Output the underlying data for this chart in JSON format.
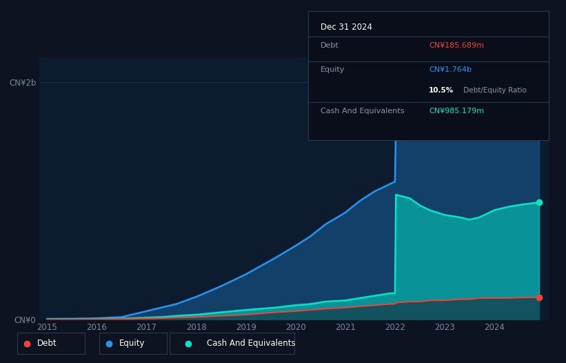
{
  "background_color": "#0d1320",
  "plot_bg_color": "#0d1b2e",
  "ylabel_top": "CN¥2b",
  "ylabel_bottom": "CN¥0",
  "x_ticks": [
    2015,
    2016,
    2017,
    2018,
    2019,
    2020,
    2021,
    2022,
    2023,
    2024
  ],
  "years": [
    2015.0,
    2015.3,
    2015.6,
    2016.0,
    2016.5,
    2017.0,
    2017.3,
    2017.6,
    2018.0,
    2018.5,
    2019.0,
    2019.3,
    2019.6,
    2020.0,
    2020.3,
    2020.6,
    2021.0,
    2021.3,
    2021.6,
    2021.9,
    2022.0,
    2022.02,
    2022.3,
    2022.5,
    2022.7,
    2023.0,
    2023.3,
    2023.5,
    2023.7,
    2024.0,
    2024.3,
    2024.6,
    2024.9
  ],
  "equity": [
    0.005,
    0.006,
    0.007,
    0.01,
    0.02,
    0.07,
    0.1,
    0.13,
    0.19,
    0.28,
    0.38,
    0.45,
    0.52,
    0.62,
    0.7,
    0.8,
    0.9,
    1.0,
    1.08,
    1.14,
    1.16,
    1.65,
    1.68,
    1.7,
    1.71,
    1.72,
    1.74,
    1.72,
    1.71,
    1.74,
    1.75,
    1.76,
    1.764
  ],
  "cash": [
    0.003,
    0.003,
    0.004,
    0.005,
    0.008,
    0.015,
    0.02,
    0.03,
    0.04,
    0.06,
    0.08,
    0.09,
    0.1,
    0.12,
    0.13,
    0.15,
    0.16,
    0.18,
    0.2,
    0.22,
    0.22,
    1.05,
    1.02,
    0.96,
    0.92,
    0.88,
    0.86,
    0.84,
    0.86,
    0.92,
    0.95,
    0.97,
    0.985
  ],
  "debt": [
    0.001,
    0.001,
    0.002,
    0.003,
    0.005,
    0.008,
    0.01,
    0.015,
    0.02,
    0.03,
    0.04,
    0.05,
    0.06,
    0.07,
    0.08,
    0.09,
    0.1,
    0.11,
    0.12,
    0.13,
    0.13,
    0.14,
    0.15,
    0.15,
    0.16,
    0.16,
    0.17,
    0.17,
    0.18,
    0.18,
    0.18,
    0.185,
    0.186
  ],
  "equity_color": "#2196f3",
  "cash_color": "#00e5c8",
  "debt_color": "#f44336",
  "grid_color": "#1e3a5f",
  "tooltip_bg": "#090e1a",
  "tooltip_border": "#2a3a4a",
  "legend_border": "#2a3a4a",
  "ylim": [
    0,
    2.2
  ],
  "debt_label": "Debt",
  "equity_label": "Equity",
  "cash_label": "Cash And Equivalents",
  "tooltip_date": "Dec 31 2024",
  "tooltip_debt_lbl": "Debt",
  "tooltip_debt_val": "CN¥185.689m",
  "tooltip_equity_lbl": "Equity",
  "tooltip_equity_val": "CN¥1.764b",
  "tooltip_ratio_bold": "10.5%",
  "tooltip_ratio_rest": " Debt/Equity Ratio",
  "tooltip_cash_lbl": "Cash And Equivalents",
  "tooltip_cash_val": "CN¥985.179m"
}
